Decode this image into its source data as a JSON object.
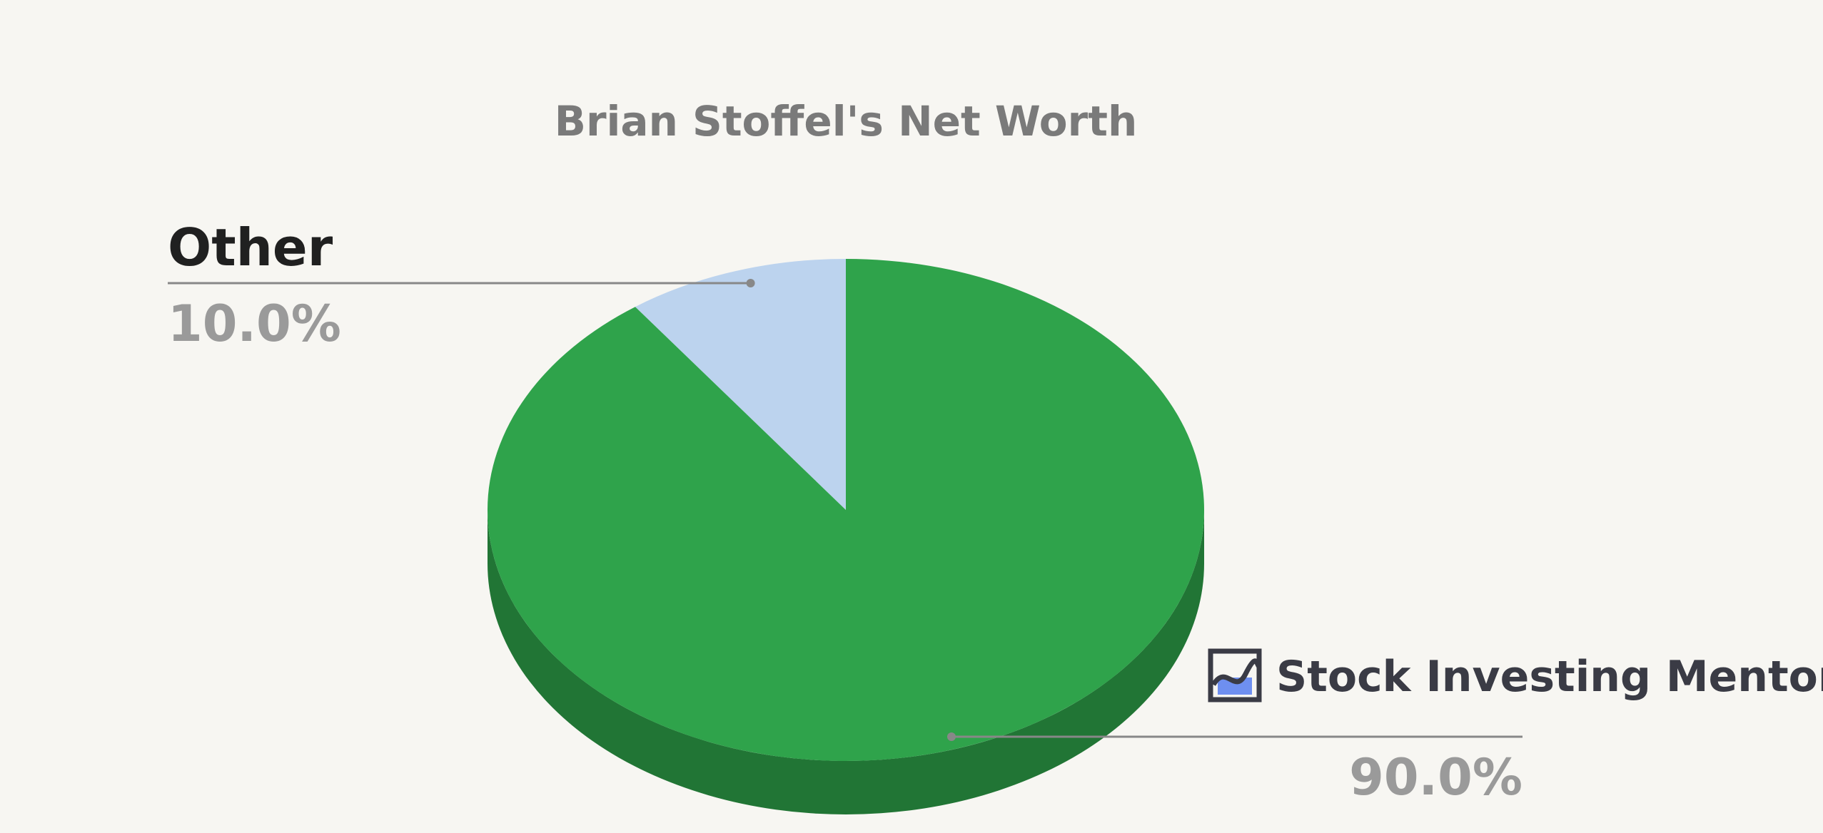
{
  "chart_data": {
    "type": "pie",
    "title": "Brian Stoffel's Net Worth",
    "style": "3d",
    "slices": [
      {
        "label": "Other",
        "value": 10.0,
        "display": "10.0%",
        "color": "#bcd3ee",
        "show_label": true
      },
      {
        "label": "",
        "value": 90.0,
        "display": "90.0%",
        "color": "#2fa34b",
        "show_label": false
      }
    ],
    "side_color": "#217535",
    "leader_color": "#888888"
  },
  "watermark": {
    "text": "Stock Investing Mentor",
    "icon": "chart-logo-icon"
  }
}
